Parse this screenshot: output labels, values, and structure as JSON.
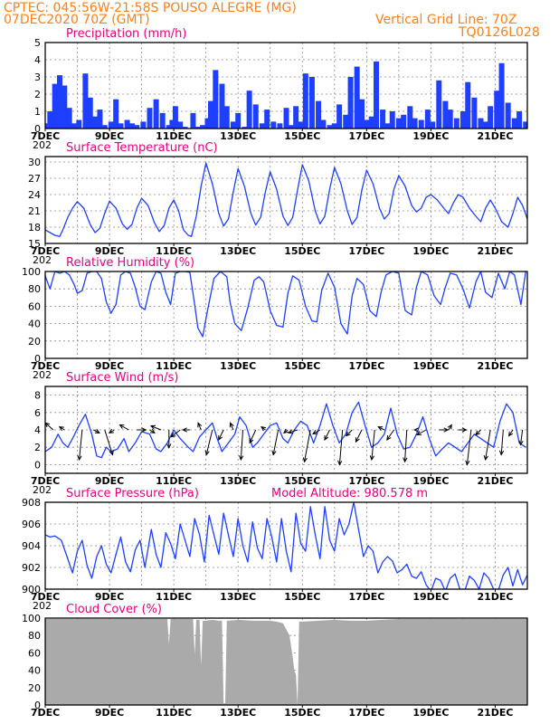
{
  "header": {
    "line1": "CPTEC:  045:56W-21:58S  POUSO ALEGRE (MG)",
    "line2": "07DEC2020 70Z (GMT)",
    "grid_note": "Vertical Grid Line: 70Z",
    "code": "TQ0126L028"
  },
  "colors": {
    "header": "#ff7f1a",
    "title": "#e6007e",
    "series": "#1f3fff",
    "cloud": "#aaaaaa",
    "grid": "#888888"
  },
  "x_ticks": [
    "7DEC",
    "9DEC",
    "11DEC",
    "13DEC",
    "15DEC",
    "17DEC",
    "19DEC",
    "21DEC"
  ],
  "year_stub": "202",
  "chart_data": [
    {
      "id": "precip",
      "type": "bar",
      "title": "Precipitation (mm/h)",
      "x_range_days": [
        7,
        22
      ],
      "ylim": [
        0,
        5
      ],
      "yticks": [
        "0",
        "1",
        "2",
        "3",
        "4",
        "5"
      ],
      "x": [
        7.05,
        7.15,
        7.3,
        7.45,
        7.6,
        7.75,
        7.9,
        8.05,
        8.25,
        8.4,
        8.55,
        8.7,
        8.85,
        9.05,
        9.2,
        9.35,
        9.55,
        9.7,
        9.85,
        10.05,
        10.25,
        10.45,
        10.65,
        10.85,
        10.95,
        11.05,
        11.2,
        11.35,
        11.6,
        11.75,
        11.9,
        12.05,
        12.15,
        12.3,
        12.5,
        12.65,
        12.85,
        13.0,
        13.2,
        13.35,
        13.55,
        13.75,
        13.9,
        14.1,
        14.3,
        14.5,
        14.65,
        14.8,
        14.95,
        15.1,
        15.3,
        15.5,
        15.65,
        15.85,
        16.0,
        16.15,
        16.35,
        16.5,
        16.7,
        16.85,
        17.0,
        17.15,
        17.3,
        17.5,
        17.65,
        17.8,
        18.0,
        18.15,
        18.35,
        18.5,
        18.7,
        18.9,
        19.05,
        19.25,
        19.45,
        19.6,
        19.8,
        20.0,
        20.15,
        20.35,
        20.55,
        20.7,
        20.85,
        21.05,
        21.2,
        21.4,
        21.6,
        21.75,
        21.95
      ],
      "values": [
        0.3,
        1.0,
        2.6,
        3.1,
        2.5,
        1.2,
        0.3,
        0.5,
        3.2,
        1.8,
        0.7,
        1.1,
        0.2,
        0.4,
        1.7,
        0.3,
        0.5,
        0.3,
        0.2,
        0.4,
        1.2,
        1.7,
        0.9,
        0.2,
        0.5,
        1.3,
        0.4,
        0.1,
        0.9,
        0.1,
        0.2,
        0.6,
        1.6,
        3.4,
        2.6,
        1.3,
        0.4,
        0.9,
        0.1,
        2.2,
        1.4,
        0.3,
        1.1,
        0.4,
        0.3,
        1.2,
        0.2,
        1.3,
        0.4,
        3.2,
        3.0,
        1.6,
        0.5,
        0.2,
        0.3,
        1.4,
        0.8,
        3.0,
        3.6,
        1.7,
        0.5,
        0.7,
        3.9,
        1.1,
        0.3,
        1.0,
        0.6,
        0.8,
        1.3,
        0.6,
        0.5,
        1.1,
        0.4,
        2.8,
        1.6,
        1.1,
        0.6,
        1.0,
        2.7,
        1.8,
        0.6,
        0.4,
        1.3,
        2.2,
        3.8,
        1.5,
        0.6,
        1.0,
        0.4
      ]
    },
    {
      "id": "temp",
      "type": "line",
      "title": "Surface Temperature (nC)",
      "x_range_days": [
        7,
        22
      ],
      "ylim": [
        15,
        31
      ],
      "yticks": [
        "15",
        "18",
        "21",
        "24",
        "27",
        "30"
      ],
      "x": [
        7.0,
        7.15,
        7.3,
        7.45,
        7.55,
        7.7,
        7.85,
        8.0,
        8.2,
        8.4,
        8.55,
        8.7,
        8.85,
        9.0,
        9.2,
        9.4,
        9.55,
        9.7,
        9.85,
        10.0,
        10.2,
        10.4,
        10.55,
        10.7,
        10.85,
        11.0,
        11.15,
        11.3,
        11.45,
        11.55,
        11.7,
        11.85,
        12.0,
        12.2,
        12.4,
        12.55,
        12.7,
        12.85,
        13.0,
        13.2,
        13.4,
        13.55,
        13.7,
        13.85,
        14.0,
        14.2,
        14.4,
        14.55,
        14.7,
        14.85,
        15.0,
        15.2,
        15.4,
        15.55,
        15.7,
        15.85,
        16.0,
        16.2,
        16.4,
        16.55,
        16.7,
        16.85,
        17.0,
        17.2,
        17.4,
        17.55,
        17.7,
        17.85,
        18.0,
        18.2,
        18.4,
        18.55,
        18.7,
        18.85,
        19.0,
        19.2,
        19.4,
        19.55,
        19.7,
        19.85,
        20.0,
        20.2,
        20.4,
        20.55,
        20.7,
        20.85,
        21.0,
        21.2,
        21.4,
        21.55,
        21.7,
        21.85,
        22.0
      ],
      "values": [
        17.5,
        17.0,
        16.5,
        16.3,
        17.5,
        19.8,
        21.5,
        22.7,
        21.5,
        18.5,
        17.0,
        17.8,
        20.5,
        22.8,
        21.5,
        18.6,
        17.6,
        18.5,
        21.5,
        23.3,
        22.0,
        18.8,
        17.2,
        18.3,
        21.5,
        23.0,
        21.0,
        17.5,
        16.5,
        16.3,
        20.0,
        25.5,
        29.8,
        26.0,
        20.5,
        18.2,
        19.5,
        24.5,
        28.8,
        25.5,
        20.5,
        18.4,
        19.8,
        24.5,
        28.2,
        25.0,
        20.0,
        18.3,
        19.8,
        24.8,
        29.5,
        26.5,
        21.0,
        18.6,
        20.0,
        25.0,
        29.0,
        26.0,
        21.0,
        18.5,
        19.8,
        24.8,
        28.5,
        26.0,
        21.5,
        19.5,
        20.5,
        25.0,
        27.5,
        25.5,
        22.0,
        20.8,
        21.5,
        23.5,
        24.0,
        23.0,
        21.5,
        20.5,
        22.5,
        24.0,
        23.5,
        21.5,
        20.0,
        19.0,
        21.5,
        23.0,
        21.5,
        19.0,
        18.0,
        20.5,
        23.5,
        22.0,
        19.5
      ]
    },
    {
      "id": "rh",
      "type": "line",
      "title": "Relative Humidity (%)",
      "x_range_days": [
        7,
        22
      ],
      "ylim": [
        0,
        100
      ],
      "yticks": [
        "0",
        "20",
        "40",
        "60",
        "80",
        "100"
      ],
      "x": [
        7.0,
        7.15,
        7.3,
        7.45,
        7.6,
        7.75,
        7.9,
        8.0,
        8.15,
        8.3,
        8.45,
        8.6,
        8.75,
        8.9,
        9.05,
        9.2,
        9.35,
        9.5,
        9.65,
        9.8,
        9.95,
        10.1,
        10.3,
        10.45,
        10.6,
        10.75,
        10.9,
        11.05,
        11.2,
        11.35,
        11.5,
        11.65,
        11.75,
        11.9,
        12.05,
        12.25,
        12.45,
        12.65,
        12.75,
        12.9,
        13.1,
        13.3,
        13.5,
        13.65,
        13.8,
        14.0,
        14.2,
        14.4,
        14.55,
        14.7,
        14.9,
        15.1,
        15.3,
        15.45,
        15.6,
        15.8,
        16.0,
        16.2,
        16.4,
        16.55,
        16.7,
        16.9,
        17.1,
        17.3,
        17.45,
        17.6,
        17.8,
        18.0,
        18.2,
        18.4,
        18.55,
        18.7,
        18.9,
        19.1,
        19.3,
        19.45,
        19.6,
        19.8,
        20.0,
        20.2,
        20.4,
        20.55,
        20.7,
        20.9,
        21.1,
        21.3,
        21.45,
        21.6,
        21.8,
        21.95
      ],
      "values": [
        95,
        80,
        100,
        98,
        100,
        96,
        85,
        75,
        78,
        98,
        100,
        100,
        92,
        65,
        52,
        62,
        96,
        100,
        98,
        82,
        60,
        56,
        88,
        100,
        98,
        76,
        62,
        98,
        100,
        100,
        99,
        62,
        35,
        25,
        55,
        92,
        100,
        94,
        65,
        40,
        32,
        58,
        90,
        94,
        88,
        55,
        38,
        36,
        75,
        95,
        90,
        60,
        43,
        42,
        78,
        98,
        82,
        40,
        28,
        72,
        92,
        85,
        55,
        48,
        76,
        96,
        100,
        98,
        55,
        50,
        82,
        100,
        96,
        72,
        62,
        82,
        98,
        96,
        80,
        58,
        88,
        100,
        76,
        70,
        98,
        80,
        100,
        96,
        62,
        100
      ]
    },
    {
      "id": "wind",
      "type": "line",
      "title": "Surface Wind (m/s)",
      "x_range_days": [
        7,
        22
      ],
      "ylim": [
        -1,
        9
      ],
      "yticks": [
        "0",
        "2",
        "4",
        "6",
        "8"
      ],
      "x": [
        7.0,
        7.2,
        7.4,
        7.55,
        7.7,
        7.85,
        8.05,
        8.25,
        8.45,
        8.6,
        8.75,
        8.9,
        9.05,
        9.25,
        9.45,
        9.6,
        9.8,
        10.0,
        10.25,
        10.45,
        10.6,
        10.8,
        11.0,
        11.2,
        11.45,
        11.6,
        11.8,
        12.0,
        12.2,
        12.35,
        12.5,
        12.7,
        12.9,
        13.05,
        13.25,
        13.45,
        13.6,
        13.8,
        14.0,
        14.2,
        14.4,
        14.55,
        14.75,
        14.95,
        15.15,
        15.35,
        15.55,
        15.75,
        15.95,
        16.15,
        16.35,
        16.55,
        16.75,
        16.95,
        17.15,
        17.35,
        17.55,
        17.75,
        17.95,
        18.15,
        18.35,
        18.55,
        18.75,
        18.95,
        19.15,
        19.35,
        19.55,
        19.75,
        19.95,
        20.15,
        20.35,
        20.55,
        20.75,
        20.95,
        21.15,
        21.35,
        21.55,
        21.75,
        21.95
      ],
      "values": [
        1.5,
        2.0,
        3.5,
        2.5,
        2.0,
        3.0,
        4.5,
        5.8,
        3.5,
        1.0,
        0.8,
        2.0,
        1.5,
        1.8,
        3.0,
        1.5,
        2.5,
        3.8,
        3.5,
        1.8,
        1.5,
        2.5,
        4.0,
        3.0,
        2.0,
        1.5,
        3.2,
        4.0,
        4.8,
        3.0,
        1.5,
        2.5,
        3.5,
        5.5,
        4.5,
        2.0,
        2.5,
        3.5,
        4.5,
        4.8,
        3.0,
        2.5,
        4.0,
        5.0,
        4.5,
        2.5,
        4.5,
        7.0,
        4.5,
        2.5,
        3.5,
        6.0,
        7.2,
        4.5,
        2.0,
        2.5,
        3.5,
        6.5,
        3.5,
        1.8,
        2.0,
        3.5,
        5.5,
        3.0,
        1.0,
        1.8,
        2.5,
        2.0,
        1.5,
        2.5,
        3.5,
        3.0,
        2.5,
        2.0,
        5.0,
        7.0,
        6.0,
        2.5,
        2.0
      ]
    },
    {
      "id": "pressure",
      "type": "line",
      "title": "Surface Pressure (hPa)",
      "subtitle": "Model Altitude: 980.578 m",
      "x_range_days": [
        7,
        22
      ],
      "ylim": [
        900,
        908
      ],
      "yticks": [
        "900",
        "902",
        "904",
        "906",
        "908"
      ],
      "x": [
        7.0,
        7.15,
        7.3,
        7.5,
        7.7,
        7.85,
        8.0,
        8.15,
        8.3,
        8.45,
        8.6,
        8.75,
        8.9,
        9.05,
        9.2,
        9.35,
        9.5,
        9.65,
        9.8,
        9.95,
        10.1,
        10.3,
        10.45,
        10.6,
        10.75,
        10.9,
        11.05,
        11.2,
        11.35,
        11.5,
        11.65,
        11.8,
        11.95,
        12.1,
        12.25,
        12.4,
        12.55,
        12.7,
        12.85,
        13.0,
        13.15,
        13.3,
        13.45,
        13.6,
        13.75,
        13.9,
        14.05,
        14.2,
        14.35,
        14.5,
        14.65,
        14.8,
        14.95,
        15.1,
        15.25,
        15.4,
        15.55,
        15.7,
        15.85,
        16.0,
        16.15,
        16.3,
        16.45,
        16.6,
        16.75,
        16.9,
        17.05,
        17.2,
        17.35,
        17.5,
        17.65,
        17.8,
        17.95,
        18.1,
        18.25,
        18.4,
        18.55,
        18.7,
        18.85,
        19.0,
        19.15,
        19.3,
        19.45,
        19.6,
        19.75,
        19.9,
        20.05,
        20.2,
        20.35,
        20.5,
        20.65,
        20.8,
        20.95,
        21.1,
        21.25,
        21.4,
        21.55,
        21.7,
        21.85,
        22.0
      ],
      "values": [
        905.0,
        904.8,
        904.9,
        904.5,
        902.8,
        901.5,
        903.5,
        904.5,
        902.2,
        901.0,
        903.0,
        904.0,
        902.3,
        901.5,
        903.2,
        904.8,
        902.5,
        901.6,
        903.6,
        904.5,
        902.0,
        905.5,
        903.2,
        902.0,
        905.2,
        904.2,
        902.8,
        906.0,
        904.5,
        903.0,
        906.5,
        905.0,
        902.5,
        906.8,
        905.0,
        903.2,
        907.0,
        905.0,
        903.0,
        906.5,
        904.0,
        902.5,
        906.2,
        903.8,
        902.8,
        906.5,
        904.8,
        902.5,
        906.5,
        903.5,
        901.6,
        907.0,
        904.2,
        903.5,
        907.6,
        905.0,
        902.8,
        907.6,
        904.5,
        903.5,
        906.5,
        905.0,
        906.0,
        908.0,
        905.5,
        903.0,
        904.0,
        903.5,
        901.5,
        902.5,
        903.0,
        902.6,
        901.5,
        901.8,
        902.3,
        901.2,
        901.0,
        901.6,
        900.4,
        899.8,
        901.0,
        900.8,
        899.8,
        901.0,
        901.4,
        900.0,
        899.8,
        901.2,
        900.8,
        900.0,
        901.5,
        901.0,
        900.0,
        899.9,
        901.3,
        902.0,
        900.3,
        901.8,
        900.4,
        901.3
      ]
    },
    {
      "id": "cloud",
      "type": "area",
      "title": "Cloud Cover (%)",
      "x_range_days": [
        7,
        22
      ],
      "ylim": [
        0,
        100
      ],
      "yticks": [
        "0",
        "20",
        "40",
        "60",
        "80",
        "100"
      ],
      "x": [
        7.0,
        7.5,
        8.0,
        9.0,
        10.0,
        10.8,
        10.85,
        10.9,
        11.0,
        11.6,
        11.65,
        11.7,
        11.8,
        11.85,
        11.9,
        12.0,
        12.2,
        12.4,
        12.5,
        12.55,
        12.6,
        12.65,
        12.7,
        13.0,
        13.5,
        14.0,
        14.2,
        14.4,
        14.6,
        14.7,
        14.75,
        14.8,
        14.85,
        14.9,
        15.0,
        15.5,
        16.0,
        16.5,
        17.0,
        17.5,
        18.0,
        19.0,
        20.0,
        21.0,
        22.0
      ],
      "values": [
        99,
        99,
        99,
        99,
        99,
        99,
        70,
        99,
        99,
        99,
        58,
        98,
        98,
        45,
        97,
        97,
        98,
        97,
        97,
        2,
        2,
        97,
        97,
        98,
        97,
        97,
        96,
        94,
        80,
        55,
        40,
        35,
        0,
        96,
        96,
        97,
        98,
        97,
        97,
        98,
        99,
        99,
        99,
        99,
        99
      ]
    }
  ],
  "wind_vectors": {
    "x": [
      7.25,
      7.6,
      8.15,
      8.5,
      8.85,
      9.15,
      9.6,
      9.85,
      10.25,
      10.6,
      10.85,
      11.2,
      11.5,
      11.85,
      12.2,
      12.55,
      12.85,
      13.15,
      13.55,
      13.85,
      14.25,
      14.55,
      14.85,
      15.25,
      15.55,
      15.85,
      16.25,
      16.55,
      16.85,
      17.25,
      17.55,
      17.85,
      18.25,
      18.55,
      18.85,
      19.25,
      19.55,
      19.85,
      20.25,
      20.55,
      20.85,
      21.25,
      21.55,
      21.85
    ],
    "u": [
      -0.8,
      -0.5,
      -0.3,
      0.6,
      0.8,
      -0.5,
      -0.9,
      0.9,
      0.5,
      -1.0,
      0.0,
      -0.9,
      -0.7,
      -0.3,
      -0.6,
      -0.5,
      -0.3,
      -0.2,
      -0.6,
      -0.4,
      -0.5,
      -0.4,
      -0.9,
      -0.6,
      -0.7,
      -0.5,
      -0.3,
      -0.6,
      -0.6,
      -0.3,
      -0.6,
      -0.7,
      -0.2,
      -0.2,
      -0.9,
      0.9,
      0.3,
      0.8,
      -0.4,
      -0.5,
      -0.5,
      -0.2,
      -0.4,
      -0.2
    ],
    "v": [
      0.7,
      0.3,
      -3.0,
      -0.3,
      -2.5,
      -0.3,
      0.5,
      0.0,
      -0.3,
      0.4,
      -1.8,
      -0.7,
      0.0,
      0.7,
      -2.5,
      -1.0,
      0.7,
      -3.0,
      -1.3,
      0.3,
      -2.5,
      -0.3,
      -0.3,
      -3.2,
      -0.4,
      -1.0,
      -3.5,
      -0.6,
      -1.2,
      -3.0,
      0.3,
      -1.0,
      -3.2,
      0.0,
      -0.5,
      0.0,
      0.5,
      0.0,
      -3.5,
      -0.5,
      -3.0,
      -2.5,
      -0.6,
      -1.5
    ]
  }
}
